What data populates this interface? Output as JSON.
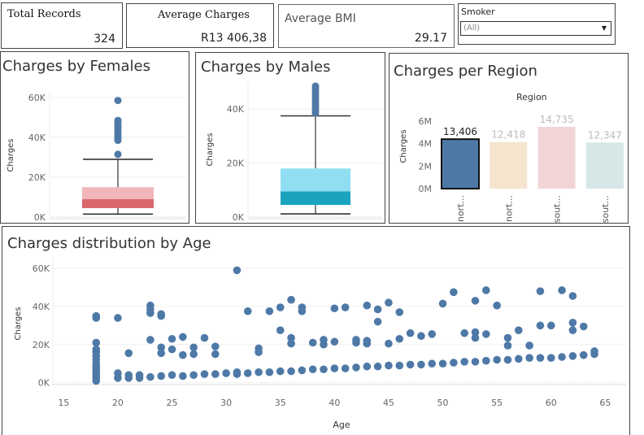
{
  "kpis": {
    "total_records": {
      "label": "Total Records",
      "value": "324"
    },
    "average_charges": {
      "label": "Average Charges",
      "value": "R13 406,38"
    },
    "average_bmi": {
      "label": "Average BMI",
      "value": "29.17"
    }
  },
  "filter": {
    "label": "Smoker",
    "selected": "(All)"
  },
  "colors": {
    "female_upper": "#f2b6ba",
    "female_lower": "#d9676c",
    "male_upper": "#8fdef2",
    "male_lower": "#1aa3bf",
    "point": "#4e79a7",
    "axis_text": "#666666"
  },
  "chart_data": [
    {
      "type": "box",
      "title": "Charges by Females",
      "ylabel": "Charges",
      "ylim": [
        0,
        62000
      ],
      "ticks": [
        {
          "v": 0,
          "label": "0K"
        },
        {
          "v": 20000,
          "label": "20K"
        },
        {
          "v": 40000,
          "label": "40K"
        },
        {
          "v": 60000,
          "label": "60K"
        }
      ],
      "box": {
        "min": 1500,
        "q1": 4500,
        "median": 9000,
        "q3": 15000,
        "max": 29000
      },
      "outliers": [
        31500,
        38500,
        39500,
        40500,
        41500,
        42500,
        44000,
        45000,
        46000,
        47500,
        48500,
        58500
      ]
    },
    {
      "type": "box",
      "title": "Charges by Males",
      "ylabel": "Charges",
      "ylim": [
        0,
        50000
      ],
      "ticks": [
        {
          "v": 0,
          "label": "0K"
        },
        {
          "v": 20000,
          "label": "20K"
        },
        {
          "v": 40000,
          "label": "40K"
        }
      ],
      "box": {
        "min": 1200,
        "q1": 4500,
        "median": 9500,
        "q3": 18000,
        "max": 37500
      },
      "outliers": [
        38500,
        39500,
        40500,
        41500,
        42500,
        43500,
        44500,
        45500,
        46500,
        47500,
        48500
      ]
    },
    {
      "type": "bar",
      "title": "Charges per Region",
      "legend_title": "Region",
      "ylabel": "Charges",
      "ylim": [
        0,
        6800000
      ],
      "ticks": [
        {
          "v": 0,
          "label": "0M"
        },
        {
          "v": 2000000,
          "label": "2M"
        },
        {
          "v": 4000000,
          "label": "4M"
        },
        {
          "v": 6000000,
          "label": "6M"
        }
      ],
      "bars": [
        {
          "category": "nort...",
          "value": 4400000,
          "label": "13,406",
          "color": "#4e79a7",
          "label_color": "#222222",
          "selected": true
        },
        {
          "category": "nort...",
          "value": 4150000,
          "label": "12,418",
          "color": "#f5e4ce",
          "label_color": "#bbbbbb",
          "selected": false
        },
        {
          "category": "sout...",
          "value": 5500000,
          "label": "14,735",
          "color": "#f2d4d6",
          "label_color": "#bbbbbb",
          "selected": false
        },
        {
          "category": "sout...",
          "value": 4100000,
          "label": "12,347",
          "color": "#d7e6e6",
          "label_color": "#bbbbbb",
          "selected": false
        }
      ]
    },
    {
      "type": "scatter",
      "title": "Charges distribution by Age",
      "xlabel": "Age",
      "ylabel": "Charges",
      "xlim": [
        14,
        67
      ],
      "ylim": [
        -1000,
        63000
      ],
      "xticks": [
        15,
        20,
        25,
        30,
        35,
        40,
        45,
        50,
        55,
        60,
        65
      ],
      "yticks": [
        {
          "v": 0,
          "label": "0K"
        },
        {
          "v": 20000,
          "label": "20K"
        },
        {
          "v": 40000,
          "label": "40K"
        },
        {
          "v": 60000,
          "label": "60K"
        }
      ],
      "points": [
        [
          18,
          1000
        ],
        [
          18,
          2500
        ],
        [
          18,
          4000
        ],
        [
          18,
          5500
        ],
        [
          18,
          7000
        ],
        [
          18,
          8500
        ],
        [
          18,
          10000
        ],
        [
          18,
          12000
        ],
        [
          18,
          14000
        ],
        [
          18,
          16000
        ],
        [
          18,
          17500
        ],
        [
          18,
          21000
        ],
        [
          18,
          34000
        ],
        [
          18,
          35000
        ],
        [
          20,
          2500
        ],
        [
          20,
          5000
        ],
        [
          20,
          34000
        ],
        [
          21,
          2500
        ],
        [
          21,
          4000
        ],
        [
          21,
          15500
        ],
        [
          22,
          2500
        ],
        [
          22,
          4000
        ],
        [
          23,
          3000
        ],
        [
          23,
          22500
        ],
        [
          23,
          36500
        ],
        [
          23,
          38500
        ],
        [
          23,
          40500
        ],
        [
          24,
          3500
        ],
        [
          24,
          15500
        ],
        [
          24,
          18500
        ],
        [
          24,
          35000
        ],
        [
          24,
          36000
        ],
        [
          25,
          4000
        ],
        [
          25,
          17500
        ],
        [
          25,
          23000
        ],
        [
          26,
          3500
        ],
        [
          26,
          14500
        ],
        [
          26,
          24000
        ],
        [
          27,
          4000
        ],
        [
          27,
          15000
        ],
        [
          27,
          18500
        ],
        [
          28,
          4500
        ],
        [
          28,
          23500
        ],
        [
          29,
          4500
        ],
        [
          29,
          15000
        ],
        [
          29,
          19000
        ],
        [
          30,
          5000
        ],
        [
          31,
          4500
        ],
        [
          31,
          5500
        ],
        [
          31,
          59000
        ],
        [
          32,
          5000
        ],
        [
          32,
          37500
        ],
        [
          33,
          5500
        ],
        [
          33,
          16000
        ],
        [
          33,
          18000
        ],
        [
          34,
          5500
        ],
        [
          34,
          37500
        ],
        [
          35,
          6000
        ],
        [
          35,
          27500
        ],
        [
          35,
          39500
        ],
        [
          36,
          6000
        ],
        [
          36,
          20500
        ],
        [
          36,
          23500
        ],
        [
          36,
          43500
        ],
        [
          37,
          6500
        ],
        [
          37,
          37500
        ],
        [
          37,
          39500
        ],
        [
          38,
          7000
        ],
        [
          38,
          21000
        ],
        [
          39,
          7000
        ],
        [
          39,
          20000
        ],
        [
          39,
          22500
        ],
        [
          40,
          7500
        ],
        [
          40,
          21500
        ],
        [
          40,
          39000
        ],
        [
          41,
          7500
        ],
        [
          41,
          39500
        ],
        [
          42,
          8000
        ],
        [
          42,
          21000
        ],
        [
          42,
          22500
        ],
        [
          43,
          8500
        ],
        [
          43,
          20500
        ],
        [
          43,
          22000
        ],
        [
          43,
          40500
        ],
        [
          44,
          8500
        ],
        [
          44,
          32000
        ],
        [
          44,
          38500
        ],
        [
          45,
          9000
        ],
        [
          45,
          20500
        ],
        [
          45,
          42000
        ],
        [
          46,
          9000
        ],
        [
          46,
          23000
        ],
        [
          46,
          37000
        ],
        [
          47,
          9500
        ],
        [
          47,
          26000
        ],
        [
          48,
          9500
        ],
        [
          48,
          24500
        ],
        [
          49,
          10000
        ],
        [
          49,
          25500
        ],
        [
          50,
          10000
        ],
        [
          50,
          41500
        ],
        [
          51,
          10500
        ],
        [
          51,
          47500
        ],
        [
          52,
          11000
        ],
        [
          52,
          26000
        ],
        [
          53,
          11000
        ],
        [
          53,
          23500
        ],
        [
          53,
          26500
        ],
        [
          53,
          43000
        ],
        [
          54,
          11500
        ],
        [
          54,
          25500
        ],
        [
          54,
          48500
        ],
        [
          55,
          12000
        ],
        [
          55,
          40500
        ],
        [
          56,
          12000
        ],
        [
          56,
          19500
        ],
        [
          56,
          23500
        ],
        [
          57,
          12500
        ],
        [
          57,
          27500
        ],
        [
          58,
          13000
        ],
        [
          58,
          19500
        ],
        [
          59,
          13000
        ],
        [
          59,
          30000
        ],
        [
          59,
          48000
        ],
        [
          60,
          13000
        ],
        [
          60,
          30000
        ],
        [
          61,
          13500
        ],
        [
          61,
          48500
        ],
        [
          62,
          14000
        ],
        [
          62,
          27500
        ],
        [
          62,
          31500
        ],
        [
          62,
          45500
        ],
        [
          63,
          14500
        ],
        [
          63,
          29500
        ],
        [
          64,
          15000
        ],
        [
          64,
          16500
        ]
      ]
    }
  ]
}
